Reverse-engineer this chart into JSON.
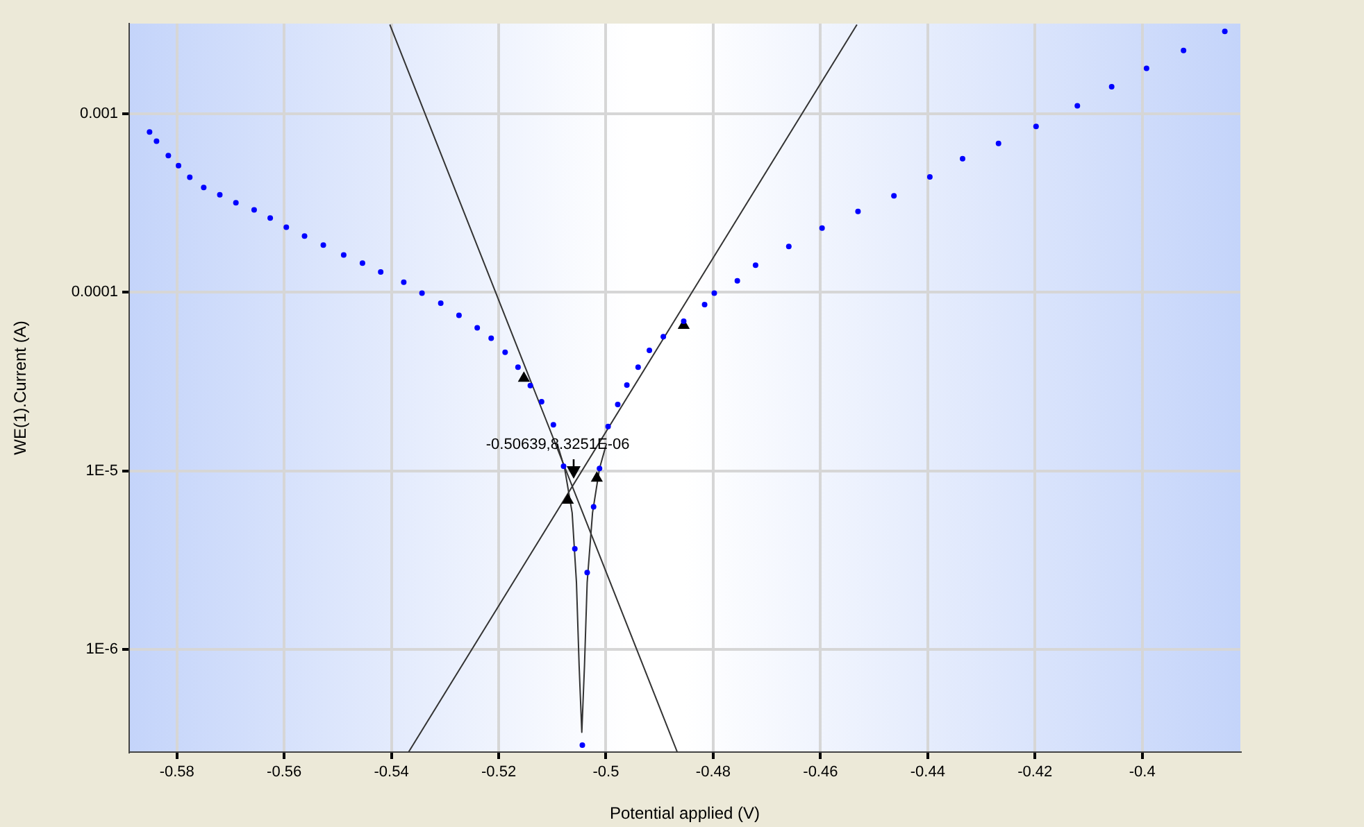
{
  "chart_data": {
    "type": "scatter",
    "xlabel": "Potential applied (V)",
    "ylabel": "WE(1).Current (A)",
    "xlim": [
      -0.5889,
      -0.3817
    ],
    "xticks": [
      -0.58,
      -0.56,
      -0.54,
      -0.52,
      -0.5,
      -0.48,
      -0.46,
      -0.44,
      -0.42,
      -0.4
    ],
    "ylim": [
      2.65e-07,
      0.00321
    ],
    "yticks": [
      0.001,
      0.0001,
      {
        "value": 1e-05,
        "label": "1E-5"
      },
      {
        "value": 1e-06,
        "label": "1E-6"
      }
    ],
    "log": "y",
    "grid": true,
    "legend": false,
    "annotations": [
      {
        "text": "-0.50639,8.3251E-06",
        "x": -0.50639,
        "y": 8.3251e-06
      }
    ],
    "series": [
      {
        "type": "scatter",
        "color": "#0000ff",
        "marker": "circle",
        "x": [
          -0.5851,
          -0.5838,
          -0.5816,
          -0.5797,
          -0.5776,
          -0.575,
          -0.572,
          -0.569,
          -0.5656,
          -0.5626,
          -0.5596,
          -0.5562,
          -0.5527,
          -0.5489,
          -0.5454,
          -0.542,
          -0.5377,
          -0.5343,
          -0.5308,
          -0.5274,
          -0.524,
          -0.5214,
          -0.5188,
          -0.5164,
          -0.5141,
          -0.512,
          -0.5098,
          -0.5079,
          -0.5058,
          -0.5044,
          -0.5035,
          -0.5023,
          -0.5012,
          -0.4996,
          -0.4978,
          -0.4961,
          -0.494,
          -0.4919,
          -0.4893,
          -0.4855,
          -0.4816,
          -0.4798,
          -0.4755,
          -0.4721,
          -0.4659,
          -0.4597,
          -0.453,
          -0.4463,
          -0.4396,
          -0.4335,
          -0.4268,
          -0.4198,
          -0.4121,
          -0.4057,
          -0.3992,
          -0.3923,
          -0.3846
        ],
        "values": [
          0.000792,
          0.000704,
          0.000584,
          0.000513,
          0.000442,
          0.000387,
          0.000352,
          0.000318,
          0.00029,
          0.000261,
          0.000232,
          0.000207,
          0.000184,
          0.000162,
          0.000146,
          0.00013,
          0.000114,
          9.91e-05,
          8.7e-05,
          7.44e-05,
          6.33e-05,
          5.53e-05,
          4.62e-05,
          3.81e-05,
          3e-05,
          2.44e-05,
          1.81e-05,
          1.06e-05,
          3.65e-06,
          2.9e-07,
          2.69e-06,
          6.28e-06,
          1.03e-05,
          1.77e-05,
          2.35e-05,
          3.02e-05,
          3.81e-05,
          4.73e-05,
          5.65e-05,
          6.89e-05,
          8.54e-05,
          9.91e-05,
          0.000116,
          0.000142,
          0.000181,
          0.000229,
          0.000284,
          0.000348,
          0.000444,
          0.000561,
          0.000683,
          0.000851,
          0.00111,
          0.00142,
          0.0018,
          0.00227,
          0.0029
        ]
      },
      {
        "type": "scatter",
        "color": "#000000",
        "marker": "triangle",
        "x": [
          -0.5153,
          -0.4855,
          -0.5071,
          -0.5017
        ],
        "values": [
          3.3e-05,
          6.53e-05,
          6.83e-06,
          9.09e-06
        ]
      },
      {
        "type": "line",
        "color": "#333333",
        "marker": "none",
        "x": [
          -0.5403,
          -0.4867
        ],
        "values": [
          0.00317,
          2.65e-07
        ]
      },
      {
        "type": "line",
        "color": "#333333",
        "marker": "none",
        "x": [
          -0.5368,
          -0.4532
        ],
        "values": [
          2.65e-07,
          0.00317
        ]
      },
      {
        "type": "line",
        "color": "#333333",
        "marker": "none",
        "x": [
          -0.5091,
          -0.5077,
          -0.5063,
          -0.5055,
          -0.505,
          -0.5045,
          -0.504,
          -0.5035,
          -0.5025,
          -0.5012,
          -0.4999
        ],
        "values": [
          1.42e-05,
          1.03e-05,
          5.81e-06,
          2.37e-06,
          8.09e-07,
          3.42e-07,
          8.09e-07,
          2.37e-06,
          5.81e-06,
          1.03e-05,
          1.42e-05
        ]
      }
    ]
  }
}
